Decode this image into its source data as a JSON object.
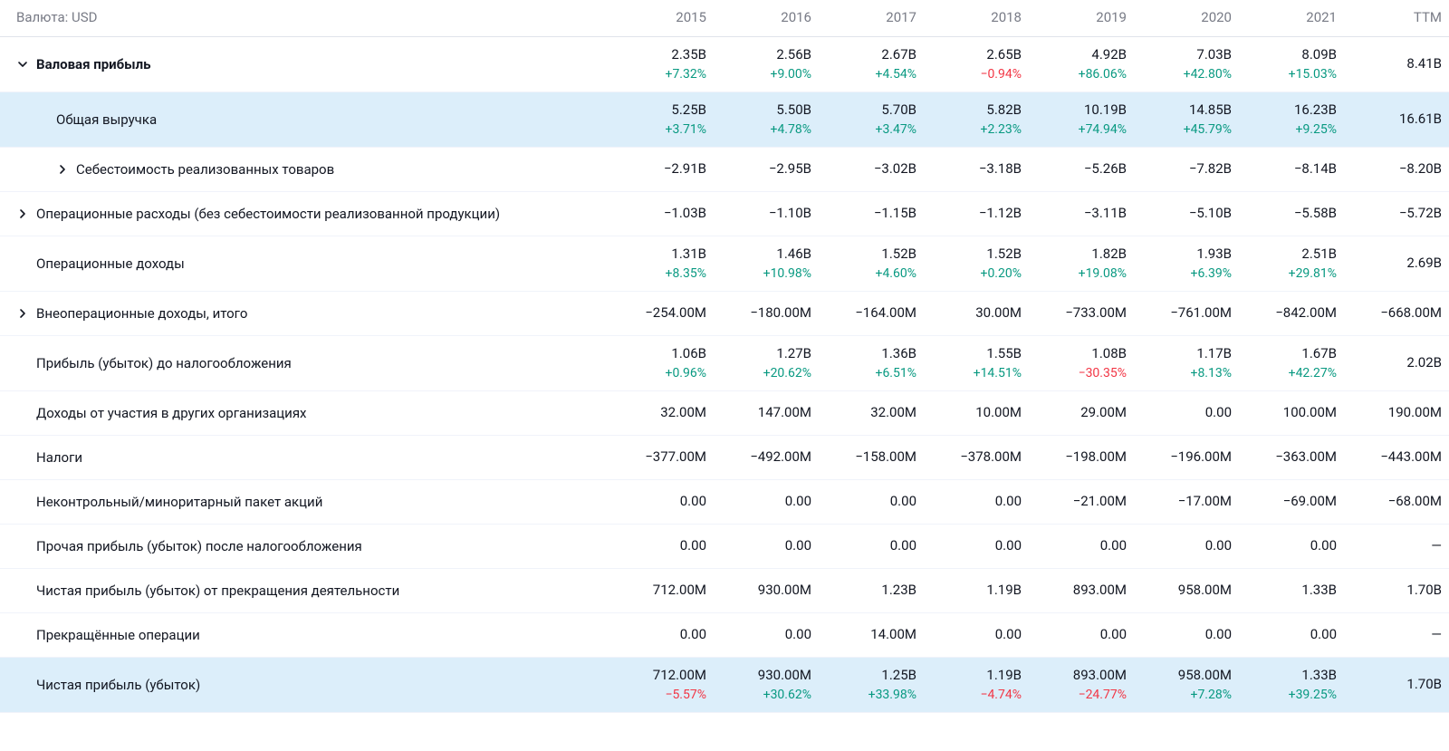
{
  "currency_label": "Валюта: USD",
  "columns": [
    "2015",
    "2016",
    "2017",
    "2018",
    "2019",
    "2020",
    "2021",
    "TTM"
  ],
  "positive_color": "#089981",
  "negative_color": "#f23645",
  "text_color": "#131722",
  "muted_color": "#787b86",
  "highlight_bg": "#dceefa",
  "row_border": "#f0f3fa",
  "rows": [
    {
      "label": "Валовая прибыль",
      "indent": 0,
      "expandable": true,
      "expanded": true,
      "bold": true,
      "highlight": false,
      "values": [
        "2.35B",
        "2.56B",
        "2.67B",
        "2.65B",
        "4.92B",
        "7.03B",
        "8.09B",
        "8.41B"
      ],
      "changes": [
        "+7.32%",
        "+9.00%",
        "+4.54%",
        "−0.94%",
        "+86.06%",
        "+42.80%",
        "+15.03%",
        ""
      ],
      "change_sign": [
        "pos",
        "pos",
        "pos",
        "neg",
        "pos",
        "pos",
        "pos",
        ""
      ]
    },
    {
      "label": "Общая выручка",
      "indent": 1,
      "expandable": false,
      "expanded": false,
      "bold": false,
      "highlight": true,
      "values": [
        "5.25B",
        "5.50B",
        "5.70B",
        "5.82B",
        "10.19B",
        "14.85B",
        "16.23B",
        "16.61B"
      ],
      "changes": [
        "+3.71%",
        "+4.78%",
        "+3.47%",
        "+2.23%",
        "+74.94%",
        "+45.79%",
        "+9.25%",
        ""
      ],
      "change_sign": [
        "pos",
        "pos",
        "pos",
        "pos",
        "pos",
        "pos",
        "pos",
        ""
      ]
    },
    {
      "label": "Себестоимость реализованных товаров",
      "indent": 2,
      "expandable": true,
      "expanded": false,
      "bold": false,
      "highlight": false,
      "values": [
        "−2.91B",
        "−2.95B",
        "−3.02B",
        "−3.18B",
        "−5.26B",
        "−7.82B",
        "−8.14B",
        "−8.20B"
      ],
      "changes": [
        "",
        "",
        "",
        "",
        "",
        "",
        "",
        ""
      ],
      "change_sign": [
        "",
        "",
        "",
        "",
        "",
        "",
        "",
        ""
      ]
    },
    {
      "label": "Операционные расходы (без себестоимости реализованной продукции)",
      "indent": 0,
      "expandable": true,
      "expanded": false,
      "bold": false,
      "highlight": false,
      "values": [
        "−1.03B",
        "−1.10B",
        "−1.15B",
        "−1.12B",
        "−3.11B",
        "−5.10B",
        "−5.58B",
        "−5.72B"
      ],
      "changes": [
        "",
        "",
        "",
        "",
        "",
        "",
        "",
        ""
      ],
      "change_sign": [
        "",
        "",
        "",
        "",
        "",
        "",
        "",
        ""
      ]
    },
    {
      "label": "Операционные доходы",
      "indent": 0,
      "expandable": false,
      "expanded": false,
      "bold": false,
      "highlight": false,
      "values": [
        "1.31B",
        "1.46B",
        "1.52B",
        "1.52B",
        "1.82B",
        "1.93B",
        "2.51B",
        "2.69B"
      ],
      "changes": [
        "+8.35%",
        "+10.98%",
        "+4.60%",
        "+0.20%",
        "+19.08%",
        "+6.39%",
        "+29.81%",
        ""
      ],
      "change_sign": [
        "pos",
        "pos",
        "pos",
        "pos",
        "pos",
        "pos",
        "pos",
        ""
      ]
    },
    {
      "label": "Внеоперационные доходы, итого",
      "indent": 0,
      "expandable": true,
      "expanded": false,
      "bold": false,
      "highlight": false,
      "values": [
        "−254.00M",
        "−180.00M",
        "−164.00M",
        "30.00M",
        "−733.00M",
        "−761.00M",
        "−842.00M",
        "−668.00M"
      ],
      "changes": [
        "",
        "",
        "",
        "",
        "",
        "",
        "",
        ""
      ],
      "change_sign": [
        "",
        "",
        "",
        "",
        "",
        "",
        "",
        ""
      ]
    },
    {
      "label": "Прибыль (убыток) до налогообложения",
      "indent": 0,
      "expandable": false,
      "expanded": false,
      "bold": false,
      "highlight": false,
      "values": [
        "1.06B",
        "1.27B",
        "1.36B",
        "1.55B",
        "1.08B",
        "1.17B",
        "1.67B",
        "2.02B"
      ],
      "changes": [
        "+0.96%",
        "+20.62%",
        "+6.51%",
        "+14.51%",
        "−30.35%",
        "+8.13%",
        "+42.27%",
        ""
      ],
      "change_sign": [
        "pos",
        "pos",
        "pos",
        "pos",
        "neg",
        "pos",
        "pos",
        ""
      ]
    },
    {
      "label": "Доходы от участия в других организациях",
      "indent": 0,
      "expandable": false,
      "expanded": false,
      "bold": false,
      "highlight": false,
      "values": [
        "32.00M",
        "147.00M",
        "32.00M",
        "10.00M",
        "29.00M",
        "0.00",
        "100.00M",
        "190.00M"
      ],
      "changes": [
        "",
        "",
        "",
        "",
        "",
        "",
        "",
        ""
      ],
      "change_sign": [
        "",
        "",
        "",
        "",
        "",
        "",
        "",
        ""
      ]
    },
    {
      "label": "Налоги",
      "indent": 0,
      "expandable": false,
      "expanded": false,
      "bold": false,
      "highlight": false,
      "values": [
        "−377.00M",
        "−492.00M",
        "−158.00M",
        "−378.00M",
        "−198.00M",
        "−196.00M",
        "−363.00M",
        "−443.00M"
      ],
      "changes": [
        "",
        "",
        "",
        "",
        "",
        "",
        "",
        ""
      ],
      "change_sign": [
        "",
        "",
        "",
        "",
        "",
        "",
        "",
        ""
      ]
    },
    {
      "label": "Неконтрольный/миноритарный пакет акций",
      "indent": 0,
      "expandable": false,
      "expanded": false,
      "bold": false,
      "highlight": false,
      "values": [
        "0.00",
        "0.00",
        "0.00",
        "0.00",
        "−21.00M",
        "−17.00M",
        "−69.00M",
        "−68.00M"
      ],
      "changes": [
        "",
        "",
        "",
        "",
        "",
        "",
        "",
        ""
      ],
      "change_sign": [
        "",
        "",
        "",
        "",
        "",
        "",
        "",
        ""
      ]
    },
    {
      "label": "Прочая прибыль (убыток) после налогообложения",
      "indent": 0,
      "expandable": false,
      "expanded": false,
      "bold": false,
      "highlight": false,
      "values": [
        "0.00",
        "0.00",
        "0.00",
        "0.00",
        "0.00",
        "0.00",
        "0.00",
        "—"
      ],
      "changes": [
        "",
        "",
        "",
        "",
        "",
        "",
        "",
        ""
      ],
      "change_sign": [
        "",
        "",
        "",
        "",
        "",
        "",
        "",
        ""
      ]
    },
    {
      "label": "Чистая прибыль (убыток) от прекращения деятельности",
      "indent": 0,
      "expandable": false,
      "expanded": false,
      "bold": false,
      "highlight": false,
      "values": [
        "712.00M",
        "930.00M",
        "1.23B",
        "1.19B",
        "893.00M",
        "958.00M",
        "1.33B",
        "1.70B"
      ],
      "changes": [
        "",
        "",
        "",
        "",
        "",
        "",
        "",
        ""
      ],
      "change_sign": [
        "",
        "",
        "",
        "",
        "",
        "",
        "",
        ""
      ]
    },
    {
      "label": "Прекращённые операции",
      "indent": 0,
      "expandable": false,
      "expanded": false,
      "bold": false,
      "highlight": false,
      "values": [
        "0.00",
        "0.00",
        "14.00M",
        "0.00",
        "0.00",
        "0.00",
        "0.00",
        "—"
      ],
      "changes": [
        "",
        "",
        "",
        "",
        "",
        "",
        "",
        ""
      ],
      "change_sign": [
        "",
        "",
        "",
        "",
        "",
        "",
        "",
        ""
      ]
    },
    {
      "label": "Чистая прибыль (убыток)",
      "indent": 0,
      "expandable": false,
      "expanded": false,
      "bold": false,
      "highlight": true,
      "values": [
        "712.00M",
        "930.00M",
        "1.25B",
        "1.19B",
        "893.00M",
        "958.00M",
        "1.33B",
        "1.70B"
      ],
      "changes": [
        "−5.57%",
        "+30.62%",
        "+33.98%",
        "−4.74%",
        "−24.77%",
        "+7.28%",
        "+39.25%",
        ""
      ],
      "change_sign": [
        "neg",
        "pos",
        "pos",
        "neg",
        "neg",
        "pos",
        "pos",
        ""
      ]
    }
  ]
}
